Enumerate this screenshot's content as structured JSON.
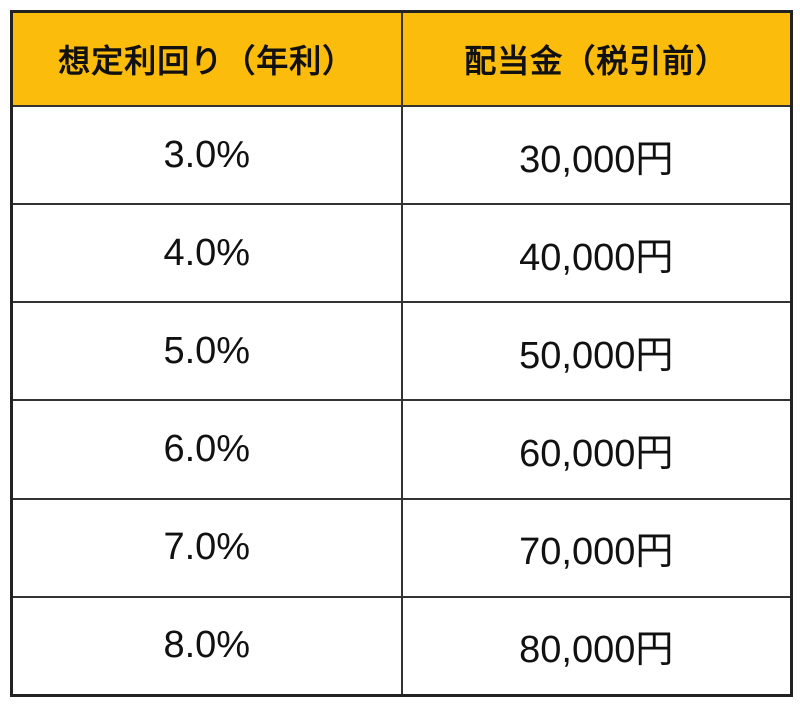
{
  "chart_data": {
    "type": "table",
    "title": "",
    "columns": [
      "想定利回り（年利）",
      "配当金（税引前）"
    ],
    "rows": [
      [
        "3.0%",
        "30,000円"
      ],
      [
        "4.0%",
        "40,000円"
      ],
      [
        "5.0%",
        "50,000円"
      ],
      [
        "6.0%",
        "60,000円"
      ],
      [
        "7.0%",
        "70,000円"
      ],
      [
        "8.0%",
        "80,000円"
      ]
    ],
    "colors": {
      "header_bg": "#FBBC0C",
      "header_text": "#111111",
      "body_bg": "#ffffff",
      "body_text": "#111111",
      "border": "#333333",
      "outer_border": "#222222"
    },
    "layout": {
      "column_split": "50/50",
      "grid": "on"
    }
  }
}
